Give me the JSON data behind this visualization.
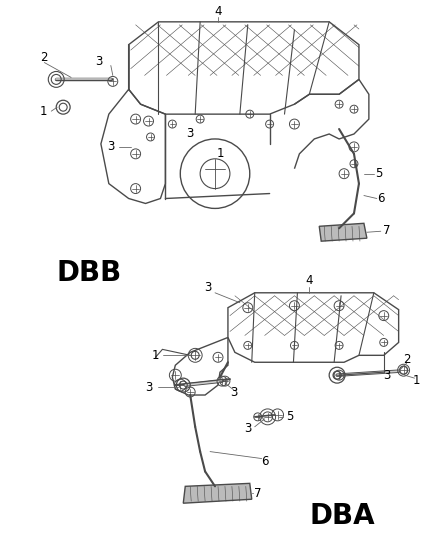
{
  "background_color": "#ffffff",
  "fig_width": 4.38,
  "fig_height": 5.33,
  "dpi": 100,
  "label_DBB": "DBB",
  "label_DBA": "DBA",
  "diagram_color": "#4a4a4a",
  "light_color": "#888888",
  "annotation_fontsize": 8.5,
  "label_fontsize": 20
}
